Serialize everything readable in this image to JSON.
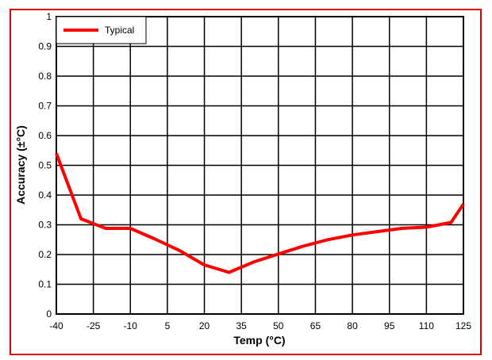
{
  "chart_data": {
    "type": "line",
    "xlabel": "Temp (°C)",
    "ylabel": "Accuracy (±°C)",
    "xlim": [
      -40,
      125
    ],
    "ylim": [
      0,
      1
    ],
    "x_ticks": [
      -40,
      -25,
      -10,
      5,
      20,
      35,
      50,
      65,
      80,
      95,
      110,
      125
    ],
    "y_ticks": [
      0,
      0.1,
      0.2,
      0.3,
      0.4,
      0.5,
      0.6,
      0.7,
      0.8,
      0.9,
      1
    ],
    "grid": true,
    "legend_position": "top-left",
    "series": [
      {
        "name": "Typical",
        "color": "#ff0000",
        "x": [
          -40,
          -30,
          -20,
          -10,
          0,
          10,
          20,
          30,
          40,
          50,
          60,
          70,
          80,
          90,
          100,
          110,
          120,
          125
        ],
        "y": [
          0.54,
          0.32,
          0.288,
          0.288,
          0.252,
          0.213,
          0.165,
          0.14,
          0.175,
          0.202,
          0.228,
          0.25,
          0.266,
          0.277,
          0.288,
          0.292,
          0.308,
          0.37
        ]
      }
    ]
  }
}
